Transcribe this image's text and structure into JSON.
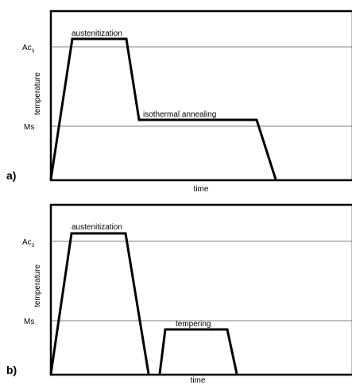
{
  "panels": [
    {
      "tag": "a)",
      "ac3_main": "Ac",
      "ac3_sub": "3",
      "ms_label": "Ms",
      "ylabel": "temperature",
      "xlabel": "time",
      "stage1": "austenitization",
      "stage2": "isothermal annealing"
    },
    {
      "tag": "b)",
      "ac3_main": "Ac",
      "ac3_sub": "3",
      "ms_label": "Ms",
      "ylabel": "temperature",
      "xlabel": "time",
      "stage1": "austenitization",
      "stage2": "tempering"
    }
  ]
}
